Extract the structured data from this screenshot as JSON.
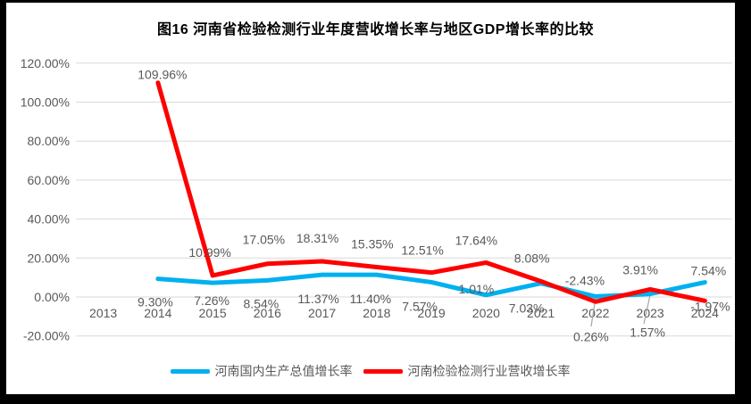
{
  "chart_data": {
    "type": "line",
    "title": "图16  河南省检验检测行业年度营收增长率与地区GDP增长率的比较",
    "categories": [
      "2013",
      "2014",
      "2015",
      "2016",
      "2017",
      "2018",
      "2019",
      "2020",
      "2021",
      "2022",
      "2023",
      "2024"
    ],
    "series": [
      {
        "name": "河南国内生产总值增长率",
        "color": "#00B0F0",
        "values": [
          null,
          9.3,
          7.26,
          8.54,
          11.37,
          11.4,
          7.57,
          1.01,
          7.03,
          0.26,
          1.57,
          7.54
        ],
        "labels": [
          null,
          "9.30%",
          "7.26%",
          "8.54%",
          "11.37%",
          "11.40%",
          "7.57%",
          "1.01%",
          "7.03%",
          "0.26%",
          "1.57%",
          "7.54%"
        ]
      },
      {
        "name": "河南检验检测行业营收增长率",
        "color": "#FF0000",
        "values": [
          null,
          109.96,
          10.99,
          17.05,
          18.31,
          15.35,
          12.51,
          17.64,
          8.08,
          -2.43,
          3.91,
          -1.97
        ],
        "labels": [
          null,
          "109.96%",
          "10.99%",
          "17.05%",
          "18.31%",
          "15.35%",
          "12.51%",
          "17.64%",
          "8.08%",
          "-2.43%",
          "3.91%",
          "-1.97%"
        ]
      }
    ],
    "y_axis": {
      "min": -20,
      "max": 120,
      "step": 20,
      "tick_labels": [
        "-20.00%",
        "0.00%",
        "20.00%",
        "40.00%",
        "60.00%",
        "80.00%",
        "100.00%",
        "120.00%"
      ]
    },
    "grid": true,
    "legend_position": "bottom"
  },
  "colors": {
    "frame": "#000000",
    "background": "#FFFFFF",
    "gridline": "#D9D9D9",
    "axis_text": "#595959",
    "label_text": "#595959",
    "leader_line": "#A6A6A6"
  }
}
